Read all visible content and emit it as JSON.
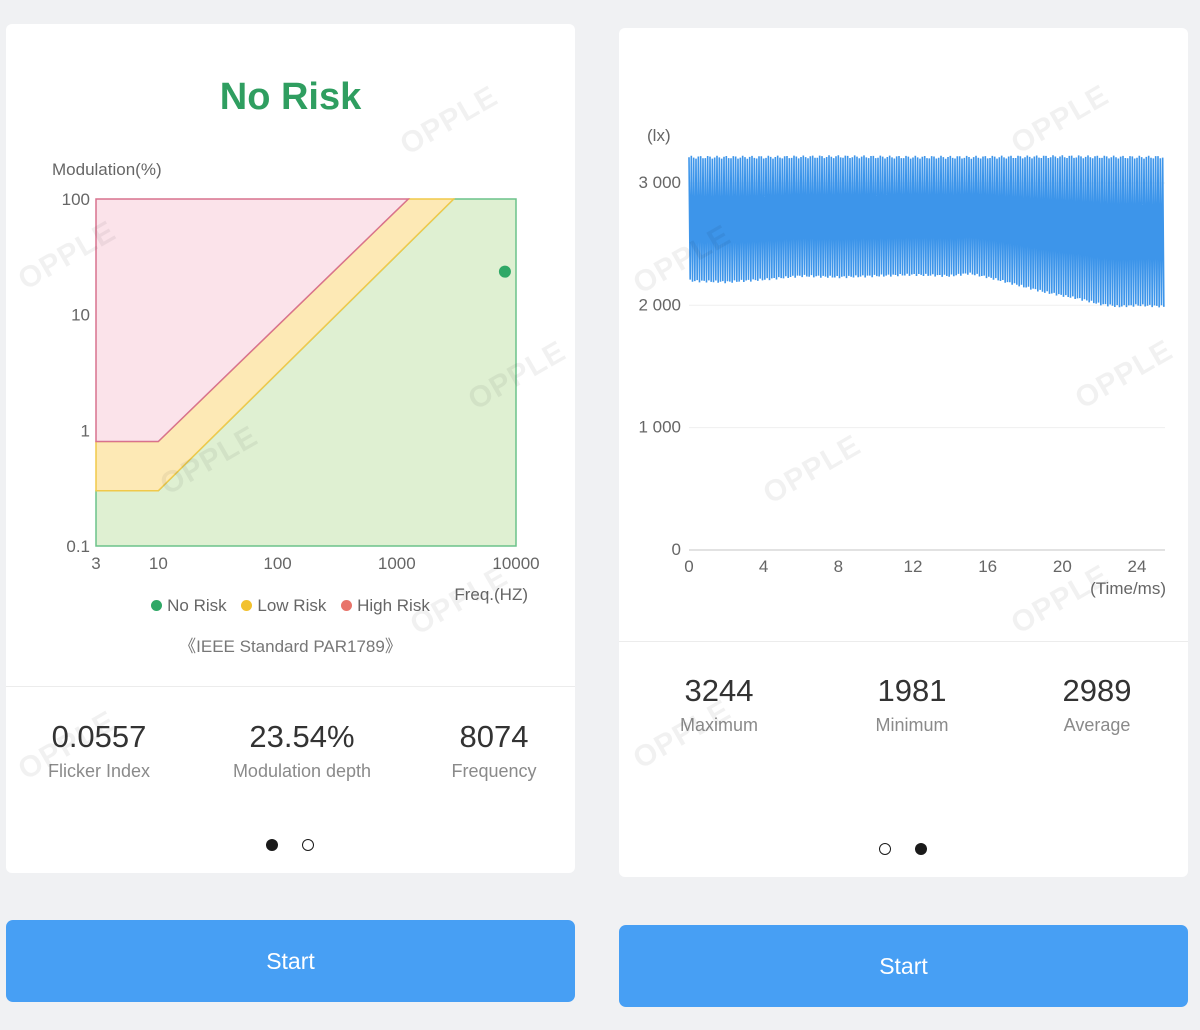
{
  "left_panel": {
    "status": "No Risk",
    "watermark": "OPPLE",
    "standard": "《IEEE Standard PAR1789》",
    "legend": [
      {
        "label": "No Risk",
        "color": "#2fa866"
      },
      {
        "label": "Low Risk",
        "color": "#f2c12e"
      },
      {
        "label": "High Risk",
        "color": "#e8746a"
      }
    ],
    "stats": [
      {
        "value": "0.0557",
        "label": "Flicker Index"
      },
      {
        "value": "23.54%",
        "label": "Modulation depth"
      },
      {
        "value": "8074",
        "label": "Frequency"
      }
    ],
    "start_label": "Start"
  },
  "right_panel": {
    "watermark": "OPPLE",
    "stats": [
      {
        "value": "3244",
        "label": "Maximum"
      },
      {
        "value": "1981",
        "label": "Minimum"
      },
      {
        "value": "2989",
        "label": "Average"
      }
    ],
    "start_label": "Start"
  },
  "chart_data": [
    {
      "type": "area",
      "title": "",
      "ylabel": "Modulation(%)",
      "xlabel": "Freq.(HZ)",
      "x_scale": "log",
      "y_scale": "log",
      "xlim": [
        3,
        10000
      ],
      "ylim": [
        0.1,
        100
      ],
      "x_ticks": [
        "3",
        "10",
        "100",
        "1000",
        "10000"
      ],
      "y_ticks": [
        "0.1",
        "1",
        "10",
        "100"
      ],
      "regions": [
        {
          "name": "No Risk",
          "color": "#2fa866",
          "fill": "#dff0d2",
          "boundary": [
            [
              3,
              0.3
            ],
            [
              10,
              0.3
            ],
            [
              3000,
              100
            ]
          ]
        },
        {
          "name": "Low Risk",
          "color": "#f2c12e",
          "fill": "#fde9b5",
          "boundary": [
            [
              3,
              0.8
            ],
            [
              10,
              0.8
            ],
            [
              1250,
              100
            ]
          ]
        },
        {
          "name": "High Risk",
          "color": "#e8746a",
          "fill": "#fbe3ea",
          "boundary": [
            [
              3,
              100
            ],
            [
              1250,
              100
            ]
          ]
        }
      ],
      "point": {
        "x": 8074,
        "y": 23.54,
        "color": "#2fa866"
      },
      "legend_position": "bottom"
    },
    {
      "type": "line",
      "title": "",
      "ylabel": "(lx)",
      "xlabel": "(Time/ms)",
      "xlim": [
        0,
        25.5
      ],
      "ylim": [
        0,
        3400
      ],
      "x_ticks": [
        "0",
        "4",
        "8",
        "12",
        "16",
        "20",
        "24"
      ],
      "y_ticks": [
        "0",
        "1 000",
        "2 000",
        "3 000"
      ],
      "grid": true,
      "series": [
        {
          "color": "#3d95ea",
          "upper_envelope": [
            [
              0,
              3210
            ],
            [
              4,
              3210
            ],
            [
              8,
              3215
            ],
            [
              12,
              3210
            ],
            [
              16,
              3210
            ],
            [
              20,
              3215
            ],
            [
              24,
              3210
            ],
            [
              25.5,
              3212
            ]
          ],
          "lower_envelope": [
            [
              0,
              2200
            ],
            [
              2,
              2190
            ],
            [
              4,
              2210
            ],
            [
              6,
              2240
            ],
            [
              8,
              2230
            ],
            [
              10,
              2240
            ],
            [
              12,
              2250
            ],
            [
              14,
              2240
            ],
            [
              15,
              2260
            ],
            [
              16,
              2230
            ],
            [
              17,
              2190
            ],
            [
              18,
              2150
            ],
            [
              19,
              2110
            ],
            [
              20,
              2080
            ],
            [
              21,
              2050
            ],
            [
              22,
              2010
            ],
            [
              23,
              1990
            ],
            [
              24,
              2000
            ],
            [
              25.5,
              1990
            ]
          ],
          "cycles_per_ms": 8
        }
      ]
    }
  ],
  "pagers": {
    "left": {
      "active_index": 0,
      "count": 2
    },
    "right": {
      "active_index": 1,
      "count": 2
    }
  }
}
